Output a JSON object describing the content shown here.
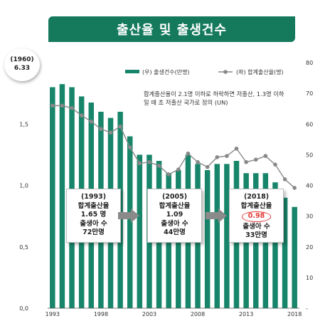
{
  "title": "출산율 및 출생건수",
  "bubble": {
    "year": "(1960)",
    "value": "6.33"
  },
  "note": "합계출산율이 2.1명 이하로 하락하면 저출산, 1.3명 이하일 때 초 저출산 국가로 정의 (UN)",
  "callouts": [
    {
      "year": "(1993)",
      "label": "합계출산율",
      "rate": "1.65 명",
      "births_label": "출생아 수",
      "births": "72만명"
    },
    {
      "year": "(2005)",
      "label": "합계출산율",
      "rate": "1.09",
      "births_label": "출생아 수",
      "births": "44만명"
    },
    {
      "year": "(2018)",
      "label": "합계출산율",
      "rate": "0.98",
      "births_label": "출생아 수",
      "births": "33만명"
    }
  ],
  "colors": {
    "bar": "#17856a",
    "line": "#888888",
    "banner": "#157a5c",
    "highlight": "#e23a36"
  },
  "chart_data": {
    "type": "bar+line",
    "x": [
      1993,
      1994,
      1995,
      1996,
      1997,
      1998,
      1999,
      2000,
      2001,
      2002,
      2003,
      2004,
      2005,
      2006,
      2007,
      2008,
      2009,
      2010,
      2011,
      2012,
      2013,
      2014,
      2015,
      2016,
      2017,
      2018
    ],
    "x_tick_labels": [
      "1993",
      "1998",
      "2003",
      "2008",
      "2013",
      "2018"
    ],
    "series": [
      {
        "name": "(우) 출생건수(만명)",
        "axis": "right",
        "kind": "bar",
        "values": [
          72,
          73,
          72,
          69,
          67,
          64,
          62,
          64,
          56,
          50,
          50,
          48,
          44,
          45,
          50,
          47,
          45,
          47,
          47,
          48,
          44,
          44,
          44,
          41,
          36,
          33
        ]
      },
      {
        "name": "(좌) 합계출산율(명)",
        "axis": "left",
        "kind": "line",
        "values": [
          1.65,
          1.65,
          1.63,
          1.57,
          1.52,
          1.46,
          1.43,
          1.48,
          1.31,
          1.18,
          1.19,
          1.16,
          1.09,
          1.13,
          1.26,
          1.19,
          1.15,
          1.23,
          1.24,
          1.3,
          1.19,
          1.21,
          1.24,
          1.17,
          1.05,
          0.98
        ]
      }
    ],
    "y_left": {
      "ticks": [
        "0,0",
        "0,5",
        "1,0",
        "1,5"
      ],
      "lim": [
        0,
        2.0
      ]
    },
    "y_right": {
      "ticks": [
        "-",
        "10",
        "20",
        "30",
        "40",
        "50",
        "60",
        "70",
        "80"
      ],
      "lim": [
        0,
        80
      ]
    },
    "legend_position": "top"
  }
}
